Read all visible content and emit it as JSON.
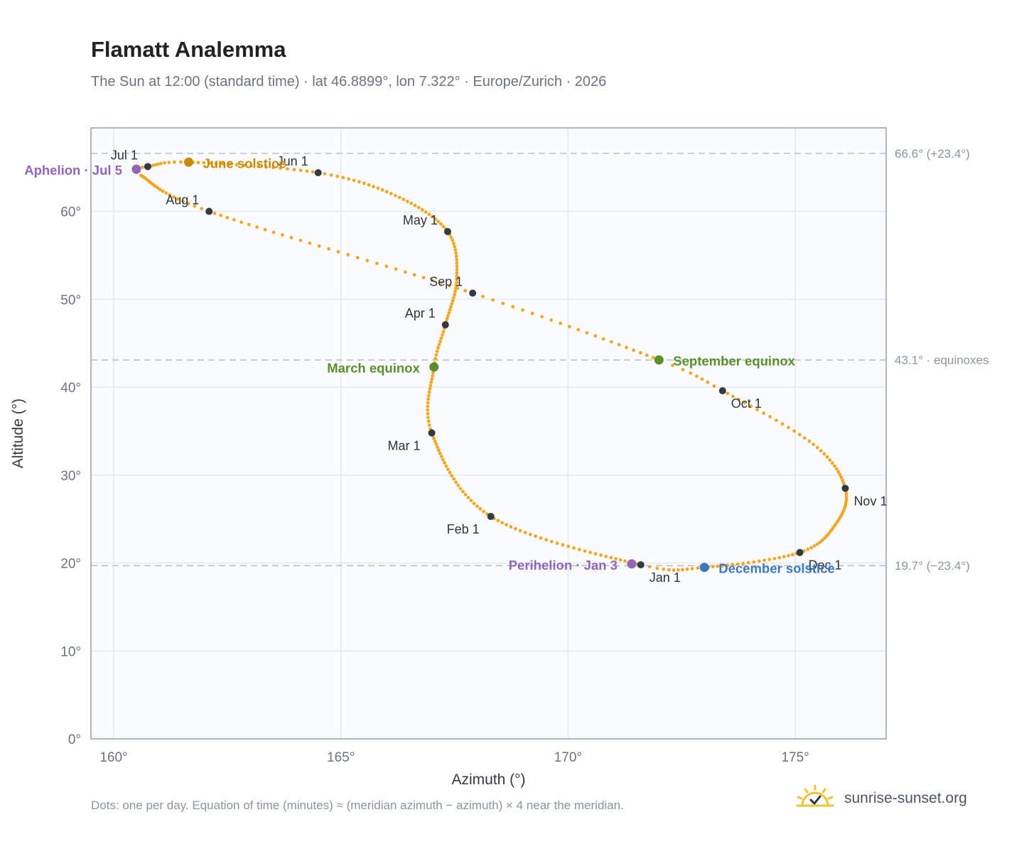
{
  "header": {
    "title": "Flamatt Analemma",
    "subtitle": "The Sun at 12:00 (standard time) · lat 46.8899°, lon 7.322° · Europe/Zurich · 2026"
  },
  "footer": {
    "note": "Dots: one per day. Equation of time (minutes) ≈ (meridian azimuth − azimuth) × 4 near the meridian.",
    "brand": "sunrise-sunset.org"
  },
  "colors": {
    "curve": "#f5a623",
    "month_marker": "#333a44",
    "equinox": "#5a8f2e",
    "june_solstice": "#c98a00",
    "december_solstice": "#3b78c2",
    "apsis": "#9166b8",
    "reference_line": "#b8c2cc",
    "grid": "#e5e9ef",
    "plot_bg": "#f9fbfd",
    "frame": "#9aa5b4",
    "brand_sun": "#f2c230"
  },
  "icons": {
    "brand_logo": "sun-check-icon"
  },
  "chart_data": {
    "type": "scatter",
    "xlabel": "Azimuth (°)",
    "ylabel": "Altitude (°)",
    "xlim": [
      159.5,
      177
    ],
    "ylim": [
      0,
      69.5
    ],
    "x_ticks": [
      160,
      165,
      170,
      175
    ],
    "x_tick_labels": [
      "160°",
      "165°",
      "170°",
      "175°"
    ],
    "y_ticks": [
      0,
      10,
      20,
      30,
      40,
      50,
      60
    ],
    "y_tick_labels": [
      "0°",
      "10°",
      "20°",
      "30°",
      "40°",
      "50°",
      "60°"
    ],
    "grid": true,
    "curve_key_points": [
      {
        "doy": 1,
        "az": 171.6,
        "alt": 19.8
      },
      {
        "doy": 32,
        "az": 168.3,
        "alt": 25.3
      },
      {
        "doy": 60,
        "az": 167.0,
        "alt": 34.8
      },
      {
        "doy": 79,
        "az": 167.05,
        "alt": 42.3
      },
      {
        "doy": 91,
        "az": 167.3,
        "alt": 47.1
      },
      {
        "doy": 106,
        "az": 167.55,
        "alt": 52.3
      },
      {
        "doy": 121,
        "az": 167.35,
        "alt": 57.7
      },
      {
        "doy": 137,
        "az": 166.2,
        "alt": 61.8
      },
      {
        "doy": 152,
        "az": 164.5,
        "alt": 64.4
      },
      {
        "doy": 172,
        "az": 161.65,
        "alt": 65.6
      },
      {
        "doy": 182,
        "az": 160.75,
        "alt": 65.1
      },
      {
        "doy": 186,
        "az": 160.5,
        "alt": 64.8
      },
      {
        "doy": 192,
        "az": 160.6,
        "alt": 64.1
      },
      {
        "doy": 213,
        "az": 162.1,
        "alt": 60.0
      },
      {
        "doy": 244,
        "az": 167.9,
        "alt": 50.7
      },
      {
        "doy": 266,
        "az": 172.0,
        "alt": 43.1
      },
      {
        "doy": 274,
        "az": 173.4,
        "alt": 39.6
      },
      {
        "doy": 290,
        "az": 175.4,
        "alt": 33.5
      },
      {
        "doy": 305,
        "az": 176.1,
        "alt": 28.5
      },
      {
        "doy": 320,
        "az": 175.9,
        "alt": 24.5
      },
      {
        "doy": 335,
        "az": 175.1,
        "alt": 21.2
      },
      {
        "doy": 355,
        "az": 173.0,
        "alt": 19.5
      },
      {
        "doy": 366,
        "az": 171.6,
        "alt": 19.8
      }
    ],
    "month_markers": [
      {
        "label": "Jan 1",
        "az": 171.6,
        "alt": 19.8,
        "anchor": "below-right"
      },
      {
        "label": "Feb 1",
        "az": 168.3,
        "alt": 25.3,
        "anchor": "below-left"
      },
      {
        "label": "Mar 1",
        "az": 167.0,
        "alt": 34.8,
        "anchor": "below-left"
      },
      {
        "label": "Apr 1",
        "az": 167.3,
        "alt": 47.1,
        "anchor": "above-left"
      },
      {
        "label": "May 1",
        "az": 167.35,
        "alt": 57.7,
        "anchor": "above-left"
      },
      {
        "label": "Jun 1",
        "az": 164.5,
        "alt": 64.4,
        "anchor": "above-left"
      },
      {
        "label": "Jul 1",
        "az": 160.75,
        "alt": 65.1,
        "anchor": "above-left"
      },
      {
        "label": "Aug 1",
        "az": 162.1,
        "alt": 60.0,
        "anchor": "above-left"
      },
      {
        "label": "Sep 1",
        "az": 167.9,
        "alt": 50.7,
        "anchor": "above-left"
      },
      {
        "label": "Oct 1",
        "az": 173.4,
        "alt": 39.6,
        "anchor": "below-right"
      },
      {
        "label": "Nov 1",
        "az": 176.1,
        "alt": 28.5,
        "anchor": "below-right"
      },
      {
        "label": "Dec 1",
        "az": 175.1,
        "alt": 21.2,
        "anchor": "below-right"
      }
    ],
    "events": [
      {
        "label": "June solstice",
        "az": 161.65,
        "alt": 65.6,
        "color_key": "june_solstice",
        "anchor": "right"
      },
      {
        "label": "March equinox",
        "az": 167.05,
        "alt": 42.3,
        "color_key": "equinox",
        "anchor": "left"
      },
      {
        "label": "September equinox",
        "az": 172.0,
        "alt": 43.1,
        "color_key": "equinox",
        "anchor": "right"
      },
      {
        "label": "December solstice",
        "az": 173.0,
        "alt": 19.5,
        "color_key": "december_solstice",
        "anchor": "right"
      },
      {
        "label": "Aphelion · Jul 5",
        "az": 160.5,
        "alt": 64.8,
        "color_key": "apsis",
        "anchor": "left"
      },
      {
        "label": "Perihelion · Jan 3",
        "az": 171.4,
        "alt": 19.9,
        "color_key": "apsis",
        "anchor": "left"
      }
    ],
    "reference_lines": [
      {
        "alt": 66.6,
        "label": "66.6° (+23.4°)"
      },
      {
        "alt": 43.1,
        "label": "43.1° · equinoxes"
      },
      {
        "alt": 19.7,
        "label": "19.7° (−23.4°)"
      }
    ]
  }
}
